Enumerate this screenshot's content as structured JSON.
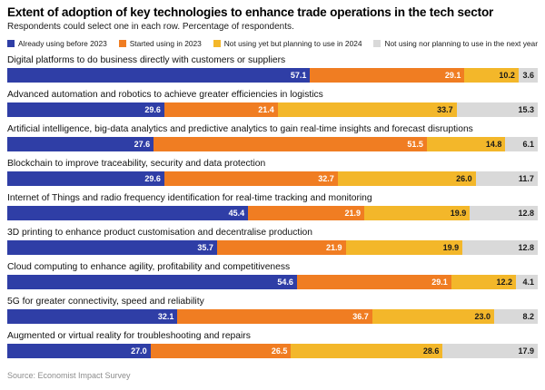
{
  "header": {
    "title": "Extent of adoption of key technologies to enhance trade operations in the tech sector",
    "subtitle": "Respondents could select one in each row. Percentage of respondents."
  },
  "source": "Source: Economist Impact Survey",
  "chart_data": {
    "type": "bar",
    "variant": "horizontal-stacked",
    "title": "Extent of adoption of key technologies to enhance trade operations in the tech sector",
    "subtitle": "Respondents could select one in each row. Percentage of respondents.",
    "xlim": [
      0,
      100
    ],
    "legend_position": "top",
    "grid": false,
    "value_labels": "inside-right, one decimal",
    "categories": [
      "Digital platforms to do business directly with customers or suppliers",
      "Advanced automation and robotics to achieve greater efficiencies in logistics",
      "Artificial intelligence, big-data analytics and predictive analytics to gain real-time insights and forecast disruptions",
      "Blockchain to improve traceability, security and data protection",
      "Internet of Things and radio frequency identification for real-time tracking and monitoring",
      "3D printing to enhance product customisation and decentralise production",
      "Cloud computing to enhance agility, profitability and competitiveness",
      "5G for greater connectivity, speed and reliability",
      "Augmented or virtual reality for troubleshooting and repairs"
    ],
    "series": [
      {
        "name": "Already using before 2023",
        "color": "#2f3ea6",
        "label_color": "#ffffff",
        "values": [
          57.1,
          29.6,
          27.6,
          29.6,
          45.4,
          35.7,
          54.6,
          32.1,
          27.0
        ]
      },
      {
        "name": "Started using in 2023",
        "color": "#f07d22",
        "label_color": "#ffffff",
        "values": [
          29.1,
          21.4,
          51.5,
          32.7,
          21.9,
          21.9,
          29.1,
          36.7,
          26.5
        ]
      },
      {
        "name": "Not using yet but planning to use in 2024",
        "color": "#f3b72a",
        "label_color": "#1a1a1a",
        "values": [
          10.2,
          33.7,
          14.8,
          26.0,
          19.9,
          19.9,
          12.2,
          23.0,
          28.6
        ]
      },
      {
        "name": "Not using nor planning to use in the next year",
        "color": "#d9d9d9",
        "label_color": "#1a1a1a",
        "values": [
          3.6,
          15.3,
          6.1,
          11.7,
          12.8,
          12.8,
          4.1,
          8.2,
          17.9
        ]
      }
    ]
  }
}
